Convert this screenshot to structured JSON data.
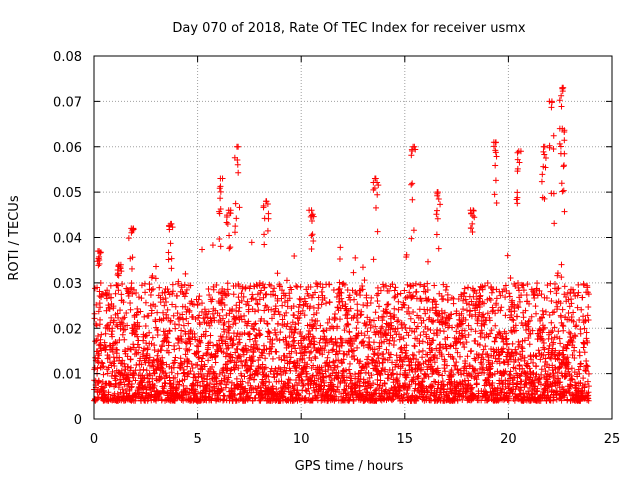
{
  "chart_data": {
    "type": "scatter",
    "title": "Day 070 of 2018, Rate Of TEC Index for receiver usmx",
    "xlabel": "GPS time / hours",
    "ylabel": "ROTI / TECUs",
    "xlim": [
      0,
      25
    ],
    "ylim": [
      0,
      0.08
    ],
    "x_ticks": [
      "0",
      "5",
      "10",
      "15",
      "20",
      "25"
    ],
    "y_ticks": [
      "0",
      "0.01",
      "0.02",
      "0.03",
      "0.04",
      "0.05",
      "0.06",
      "0.07",
      "0.08"
    ],
    "grid": true,
    "marker": "+",
    "marker_color": "#ff0000",
    "series": [
      {
        "name": "ROTI",
        "color": "#ff0000",
        "x_range": [
          0.0,
          23.9
        ],
        "typical_range": [
          0.004,
          0.03
        ],
        "peaks": [
          {
            "x": 0.25,
            "y": 0.037
          },
          {
            "x": 1.2,
            "y": 0.034
          },
          {
            "x": 1.8,
            "y": 0.042
          },
          {
            "x": 3.7,
            "y": 0.043
          },
          {
            "x": 6.1,
            "y": 0.053
          },
          {
            "x": 6.5,
            "y": 0.046
          },
          {
            "x": 6.9,
            "y": 0.06
          },
          {
            "x": 8.3,
            "y": 0.048
          },
          {
            "x": 10.5,
            "y": 0.046
          },
          {
            "x": 13.6,
            "y": 0.053
          },
          {
            "x": 15.4,
            "y": 0.06
          },
          {
            "x": 16.6,
            "y": 0.05
          },
          {
            "x": 18.3,
            "y": 0.046
          },
          {
            "x": 19.4,
            "y": 0.061
          },
          {
            "x": 20.5,
            "y": 0.059
          },
          {
            "x": 21.7,
            "y": 0.06
          },
          {
            "x": 22.1,
            "y": 0.07
          },
          {
            "x": 22.6,
            "y": 0.073
          },
          {
            "x": 22.6,
            "y": 0.064
          }
        ]
      }
    ]
  }
}
